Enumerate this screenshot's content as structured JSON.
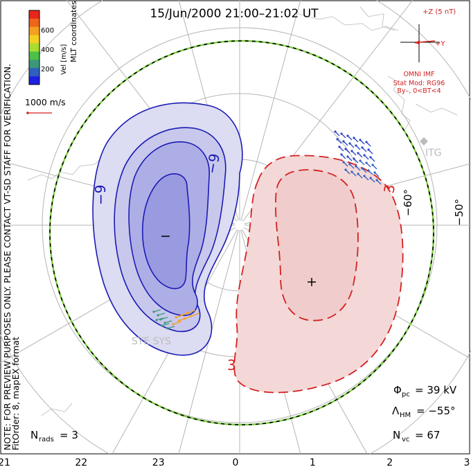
{
  "title": "15/Jun/2000 21:00–21:02 UT",
  "side_note_1": "NOTE: FOR PREVIEW PURPOSES ONLY. PLEASE CONTACT VT-SD STAFF FOR VERIFICATION.",
  "side_note_2": "FitOrder: 8, mapEX format",
  "coord_label": "MLT coordinates",
  "colorbar": {
    "label": "Vel [m/s]",
    "ticks": [
      "600",
      "400",
      "200"
    ],
    "colors": [
      "#e8261c",
      "#f0641c",
      "#f4a020",
      "#f4d020",
      "#a8dc30",
      "#4cc048",
      "#3a9878",
      "#3060c0",
      "#1e22e0"
    ]
  },
  "ref_vector": "1000 m/s",
  "imf": {
    "z_label": "+Z (5 nT)",
    "y_label": "+Y",
    "source": "OMNI IMF",
    "model": "Stat Mod: RG96",
    "condition": "By–, 0<BT<4"
  },
  "stats": {
    "phi_pc_sym": "Φ",
    "phi_pc_sub": "pc",
    "phi_pc_val": "= 39 kV",
    "lambda_hm_sym": "Λ",
    "lambda_hm_sub": "HM",
    "lambda_hm_val": "= −55°",
    "n_vc_sym": "N",
    "n_vc_sub": "vc",
    "n_vc_val": "= 67",
    "n_rads_sym": "N",
    "n_rads_sub": "rads",
    "n_rads_val": "= 3"
  },
  "mlt_ticks": [
    "21",
    "22",
    "23",
    "0",
    "1",
    "2",
    "3"
  ],
  "lat_labels": [
    "−60°",
    "−50°"
  ],
  "station_labels": [
    "SYE SYS",
    "ITG"
  ],
  "chart_data": {
    "type": "contour",
    "coordinates": "MLT",
    "hemisphere": "south",
    "negative_cell": {
      "sign": "−",
      "contour_labels": [
        "−9",
        "−9"
      ],
      "color": "#1a1ab4"
    },
    "positive_cell": {
      "sign": "+",
      "contour_labels": [
        "3",
        "3"
      ],
      "color": "#d42020"
    },
    "phi_pc_kV": 39,
    "lambda_hm_deg": -55,
    "n_vc": 67,
    "n_rads": 3
  }
}
